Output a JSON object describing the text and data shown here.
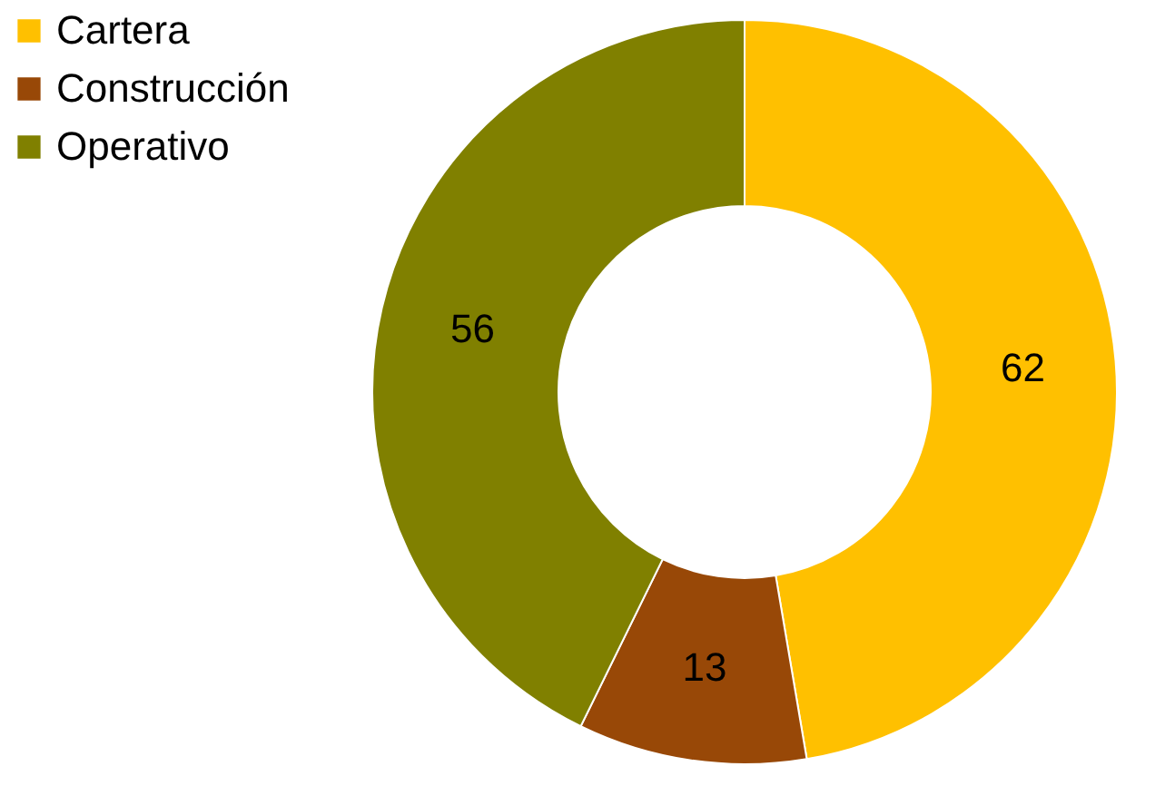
{
  "chart_data": {
    "type": "donut",
    "categories": [
      "Cartera",
      "Construcción",
      "Operativo"
    ],
    "values": [
      62,
      13,
      56
    ],
    "colors": [
      "#ffc000",
      "#984807",
      "#808000"
    ],
    "data_labels": true,
    "legend": "left"
  }
}
